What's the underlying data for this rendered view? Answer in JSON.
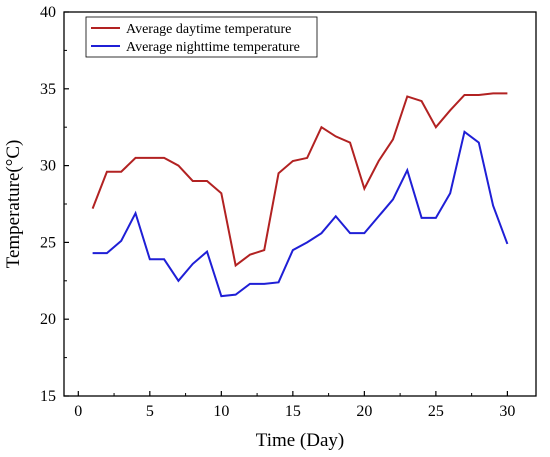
{
  "chart_data": {
    "type": "line",
    "title": "",
    "xlabel": "Time (Day)",
    "ylabel": "Temperature(°C)",
    "xlim": [
      -1,
      32
    ],
    "ylim": [
      15,
      40
    ],
    "xticks": [
      0,
      5,
      10,
      15,
      20,
      25,
      30
    ],
    "yticks": [
      15,
      20,
      25,
      30,
      35,
      40
    ],
    "grid": false,
    "legend_position": "top-left",
    "x": [
      1,
      2,
      3,
      4,
      5,
      6,
      7,
      8,
      9,
      10,
      11,
      12,
      13,
      14,
      15,
      16,
      17,
      18,
      19,
      20,
      21,
      22,
      23,
      24,
      25,
      26,
      27,
      28,
      29,
      30
    ],
    "series": [
      {
        "name": "Average daytime temperature",
        "color": "#b22222",
        "values": [
          27.2,
          29.6,
          29.6,
          30.5,
          30.5,
          30.5,
          30.0,
          29.0,
          29.0,
          28.2,
          23.5,
          24.2,
          24.5,
          29.5,
          30.3,
          30.5,
          32.5,
          31.9,
          31.5,
          28.5,
          30.3,
          31.7,
          34.5,
          34.2,
          32.5,
          33.6,
          34.6,
          34.6,
          34.7,
          34.7
        ]
      },
      {
        "name": "Average nighttime temperature",
        "color": "#1f1fd6",
        "values": [
          24.3,
          24.3,
          25.1,
          26.9,
          23.9,
          23.9,
          22.5,
          23.6,
          24.4,
          21.5,
          21.6,
          22.3,
          22.3,
          22.4,
          24.5,
          25.0,
          25.6,
          26.7,
          25.6,
          25.6,
          26.7,
          27.8,
          29.7,
          26.6,
          26.6,
          28.2,
          32.2,
          31.5,
          27.4,
          24.9
        ]
      }
    ]
  }
}
